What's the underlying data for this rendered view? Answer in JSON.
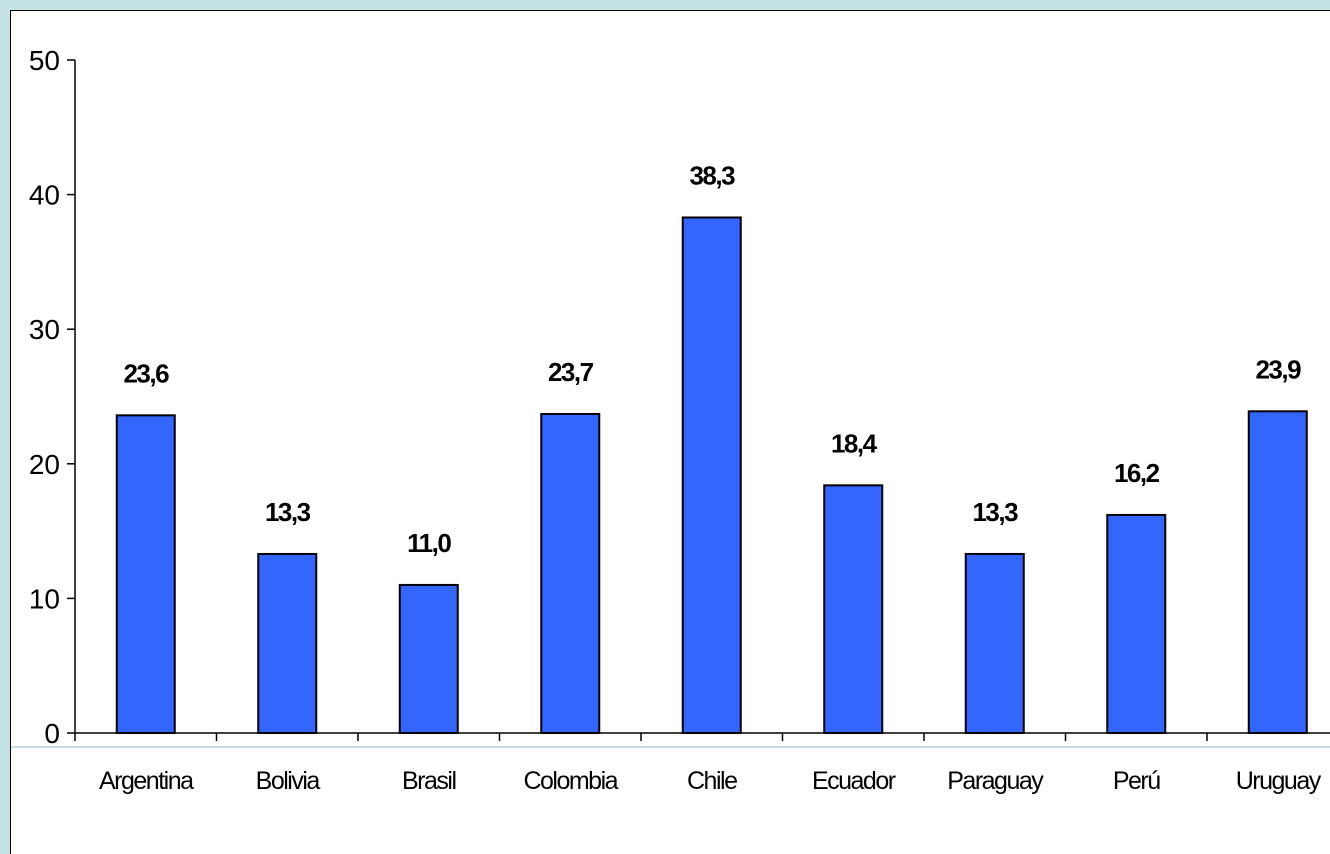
{
  "chart_data": {
    "type": "bar",
    "categories": [
      "Argentina",
      "Bolivia",
      "Brasil",
      "Colombia",
      "Chile",
      "Ecuador",
      "Paraguay",
      "Perú",
      "Uruguay"
    ],
    "values": [
      23.6,
      13.3,
      11.0,
      23.7,
      38.3,
      18.4,
      13.3,
      16.2,
      23.9
    ],
    "value_labels": [
      "23,6",
      "13,3",
      "11,0",
      "23,7",
      "38,3",
      "18,4",
      "13,3",
      "16,2",
      "23,9"
    ],
    "ylim": [
      0,
      50
    ],
    "yticks": [
      0,
      10,
      20,
      30,
      40,
      50
    ],
    "xlabel": "",
    "ylabel": "",
    "grid": false,
    "colors": {
      "bar": "#3366ff",
      "background": "#c2e2e6",
      "plot": "#ffffff",
      "baseline": "#c4dce8"
    }
  }
}
